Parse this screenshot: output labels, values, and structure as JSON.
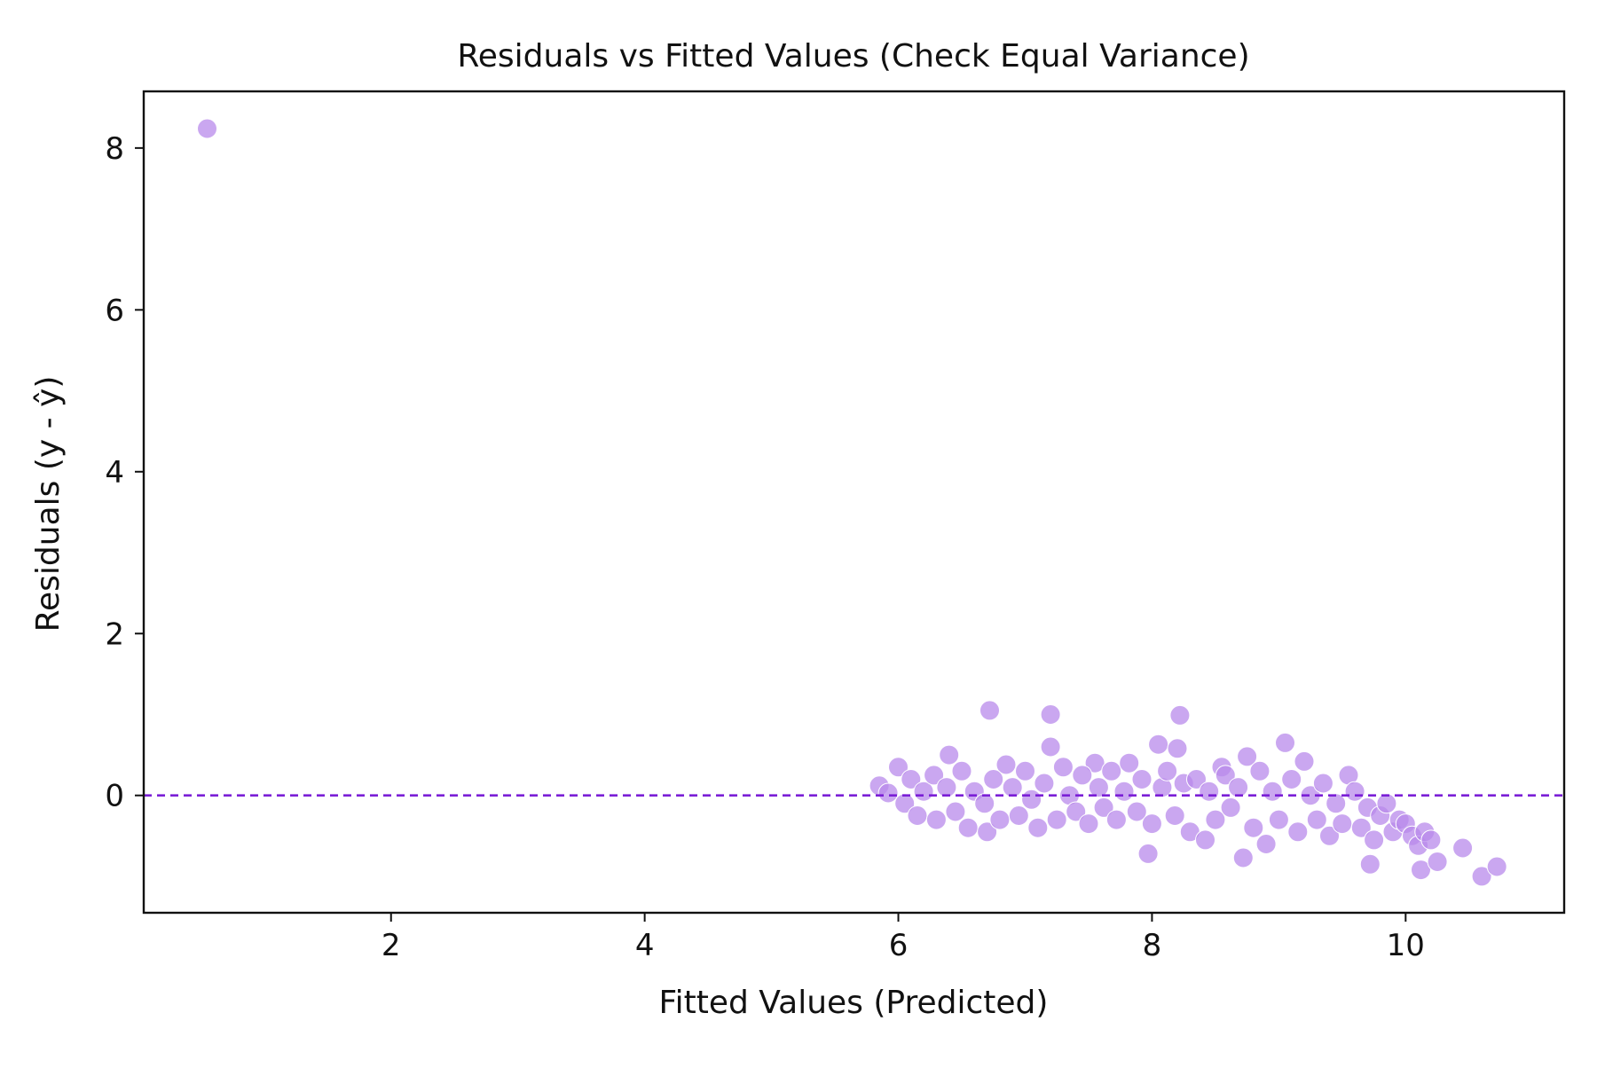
{
  "chart_data": {
    "type": "scatter",
    "title": "Residuals vs Fitted Values (Check Equal Variance)",
    "xlabel": "Fitted Values (Predicted)",
    "ylabel": "Residuals (y - ŷ)",
    "xlim": [
      0.05,
      11.25
    ],
    "ylim": [
      -1.45,
      8.7
    ],
    "xticks": [
      2,
      4,
      6,
      8,
      10
    ],
    "yticks": [
      0,
      2,
      4,
      6,
      8
    ],
    "grid": false,
    "legend": "none",
    "reference_line": {
      "y": 0,
      "style": "dashed",
      "color": "#7b1fd6"
    },
    "point_color": "#b88aeb",
    "point_opacity": 0.75,
    "point_edge_color": "#ffffff",
    "series": [
      {
        "points": [
          [
            0.55,
            8.24
          ],
          [
            6.72,
            1.05
          ],
          [
            7.2,
            1.0
          ],
          [
            8.22,
            0.99
          ],
          [
            6.4,
            0.5
          ],
          [
            6.85,
            0.38
          ],
          [
            7.2,
            0.6
          ],
          [
            7.55,
            0.4
          ],
          [
            8.05,
            0.63
          ],
          [
            8.2,
            0.58
          ],
          [
            8.55,
            0.35
          ],
          [
            8.75,
            0.48
          ],
          [
            9.05,
            0.65
          ],
          [
            9.2,
            0.42
          ],
          [
            9.55,
            0.25
          ],
          [
            7.97,
            -0.72
          ],
          [
            8.72,
            -0.77
          ],
          [
            9.72,
            -0.85
          ],
          [
            10.12,
            -0.92
          ],
          [
            10.25,
            -0.82
          ],
          [
            10.45,
            -0.65
          ],
          [
            10.6,
            -1.0
          ],
          [
            10.72,
            -0.88
          ],
          [
            5.85,
            0.12
          ],
          [
            5.92,
            0.03
          ],
          [
            6.0,
            0.35
          ],
          [
            6.05,
            -0.1
          ],
          [
            6.1,
            0.2
          ],
          [
            6.15,
            -0.25
          ],
          [
            6.2,
            0.05
          ],
          [
            6.28,
            0.25
          ],
          [
            6.3,
            -0.3
          ],
          [
            6.38,
            0.1
          ],
          [
            6.45,
            -0.2
          ],
          [
            6.5,
            0.3
          ],
          [
            6.55,
            -0.4
          ],
          [
            6.6,
            0.05
          ],
          [
            6.68,
            -0.1
          ],
          [
            6.7,
            -0.45
          ],
          [
            6.75,
            0.2
          ],
          [
            6.8,
            -0.3
          ],
          [
            6.9,
            0.1
          ],
          [
            6.95,
            -0.25
          ],
          [
            7.0,
            0.3
          ],
          [
            7.05,
            -0.05
          ],
          [
            7.1,
            -0.4
          ],
          [
            7.15,
            0.15
          ],
          [
            7.25,
            -0.3
          ],
          [
            7.3,
            0.35
          ],
          [
            7.35,
            0.0
          ],
          [
            7.4,
            -0.2
          ],
          [
            7.45,
            0.25
          ],
          [
            7.5,
            -0.35
          ],
          [
            7.58,
            0.1
          ],
          [
            7.62,
            -0.15
          ],
          [
            7.68,
            0.3
          ],
          [
            7.72,
            -0.3
          ],
          [
            7.78,
            0.05
          ],
          [
            7.82,
            0.4
          ],
          [
            7.88,
            -0.2
          ],
          [
            7.92,
            0.2
          ],
          [
            8.0,
            -0.35
          ],
          [
            8.08,
            0.1
          ],
          [
            8.12,
            0.3
          ],
          [
            8.18,
            -0.25
          ],
          [
            8.25,
            0.15
          ],
          [
            8.3,
            -0.45
          ],
          [
            8.35,
            0.2
          ],
          [
            8.42,
            -0.55
          ],
          [
            8.45,
            0.05
          ],
          [
            8.5,
            -0.3
          ],
          [
            8.58,
            0.25
          ],
          [
            8.62,
            -0.15
          ],
          [
            8.68,
            0.1
          ],
          [
            8.8,
            -0.4
          ],
          [
            8.85,
            0.3
          ],
          [
            8.9,
            -0.6
          ],
          [
            8.95,
            0.05
          ],
          [
            9.0,
            -0.3
          ],
          [
            9.1,
            0.2
          ],
          [
            9.15,
            -0.45
          ],
          [
            9.25,
            0.0
          ],
          [
            9.3,
            -0.3
          ],
          [
            9.35,
            0.15
          ],
          [
            9.4,
            -0.5
          ],
          [
            9.45,
            -0.1
          ],
          [
            9.5,
            -0.35
          ],
          [
            9.6,
            0.05
          ],
          [
            9.65,
            -0.4
          ],
          [
            9.7,
            -0.15
          ],
          [
            9.75,
            -0.55
          ],
          [
            9.8,
            -0.25
          ],
          [
            9.85,
            -0.1
          ],
          [
            9.9,
            -0.45
          ],
          [
            9.95,
            -0.3
          ],
          [
            10.0,
            -0.35
          ],
          [
            10.05,
            -0.5
          ],
          [
            10.1,
            -0.62
          ],
          [
            10.15,
            -0.45
          ],
          [
            10.2,
            -0.55
          ]
        ]
      }
    ]
  }
}
